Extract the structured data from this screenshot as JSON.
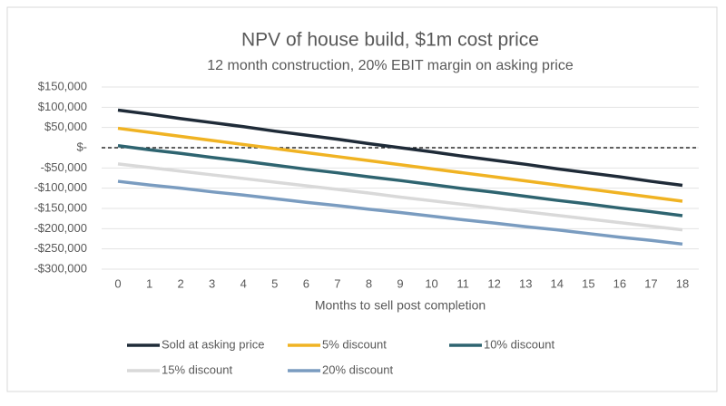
{
  "chart_data": {
    "type": "line",
    "title": "NPV of house build, $1m cost price",
    "subtitle": "12 month construction, 20% EBIT margin on asking price",
    "x_label": "Months to sell post completion",
    "x": [
      0,
      1,
      2,
      3,
      4,
      5,
      6,
      7,
      8,
      9,
      10,
      11,
      12,
      13,
      14,
      15,
      16,
      17,
      18
    ],
    "xlim": [
      0,
      18
    ],
    "xticks": [
      0,
      1,
      2,
      3,
      4,
      5,
      6,
      7,
      8,
      9,
      10,
      11,
      12,
      13,
      14,
      15,
      16,
      17,
      18
    ],
    "ylim": [
      -300000,
      150000
    ],
    "yticks": [
      {
        "value": -300000,
        "label": "-$300,000"
      },
      {
        "value": -250000,
        "label": "-$250,000"
      },
      {
        "value": -200000,
        "label": "-$200,000"
      },
      {
        "value": -150000,
        "label": "-$150,000"
      },
      {
        "value": -100000,
        "label": "-$100,000"
      },
      {
        "value": -50000,
        "label": "-$50,000"
      },
      {
        "value": 0,
        "label": "$-"
      },
      {
        "value": 50000,
        "label": "$50,000"
      },
      {
        "value": 100000,
        "label": "$100,000"
      },
      {
        "value": 150000,
        "label": "$150,000"
      }
    ],
    "grid": true,
    "zero_line_dashed": true,
    "legend": "bottom",
    "series": [
      {
        "name": "Sold at asking price",
        "color": "#1f2b38",
        "values": [
          93000,
          83000,
          72000,
          62000,
          52000,
          41000,
          31000,
          21000,
          10000,
          0,
          -10000,
          -21000,
          -31000,
          -41000,
          -52000,
          -62000,
          -72000,
          -83000,
          -93000
        ]
      },
      {
        "name": "5% discount",
        "color": "#f0b323",
        "values": [
          48000,
          38000,
          28000,
          18000,
          8000,
          -2000,
          -12000,
          -22000,
          -32000,
          -42000,
          -52000,
          -62000,
          -72000,
          -82000,
          -92000,
          -102000,
          -112000,
          -122000,
          -132000
        ]
      },
      {
        "name": "10% discount",
        "color": "#2e6470",
        "values": [
          5000,
          -5000,
          -14000,
          -24000,
          -33000,
          -43000,
          -53000,
          -62000,
          -72000,
          -81000,
          -91000,
          -101000,
          -110000,
          -120000,
          -130000,
          -139000,
          -149000,
          -158000,
          -168000
        ]
      },
      {
        "name": "15% discount",
        "color": "#d9d9d9",
        "values": [
          -40000,
          -49000,
          -58000,
          -67000,
          -76000,
          -85000,
          -94000,
          -103000,
          -112000,
          -122000,
          -131000,
          -140000,
          -149000,
          -158000,
          -167000,
          -176000,
          -185000,
          -194000,
          -203000
        ]
      },
      {
        "name": "20% discount",
        "color": "#7a9cc0",
        "values": [
          -83000,
          -92000,
          -100000,
          -109000,
          -117000,
          -126000,
          -135000,
          -143000,
          -152000,
          -160000,
          -169000,
          -178000,
          -186000,
          -195000,
          -203000,
          -212000,
          -221000,
          -229000,
          -238000
        ]
      }
    ]
  }
}
